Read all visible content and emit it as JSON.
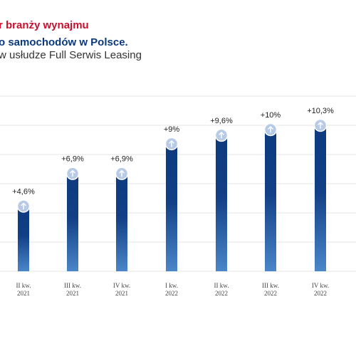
{
  "header": {
    "title_line1": "r branży wynajmu",
    "title_line2": "o samochodów w Polsce.",
    "subtitle": "w usłudze Full Serwis Leasing"
  },
  "colors": {
    "title_red": "#c8102e",
    "title_blue": "#0a3a7a",
    "bar_top": "#0d3b7e",
    "bar_bottom": "#4a86c8",
    "marker": "#b8cbe6",
    "grid": "#e6e6e6"
  },
  "chart_data": {
    "type": "bar",
    "categories": [
      {
        "line1": "II kw.",
        "line2": "2021"
      },
      {
        "line1": "III kw.",
        "line2": "2021"
      },
      {
        "line1": "IV kw.",
        "line2": "2021"
      },
      {
        "line1": "I kw.",
        "line2": "2022"
      },
      {
        "line1": "II kw.",
        "line2": "2022"
      },
      {
        "line1": "III kw.",
        "line2": "2022"
      },
      {
        "line1": "IV kw.",
        "line2": "2022"
      }
    ],
    "values": [
      4.6,
      6.9,
      6.9,
      9,
      9.6,
      10,
      10.3
    ],
    "data_labels": [
      "+4,6%",
      "+6,9%",
      "+6,9%",
      "+9%",
      "+9,6%",
      "+10%",
      "+10,3%"
    ],
    "marker_icon": "arrow-up-icon",
    "ylim": [
      0,
      10.3
    ],
    "grid": true
  }
}
